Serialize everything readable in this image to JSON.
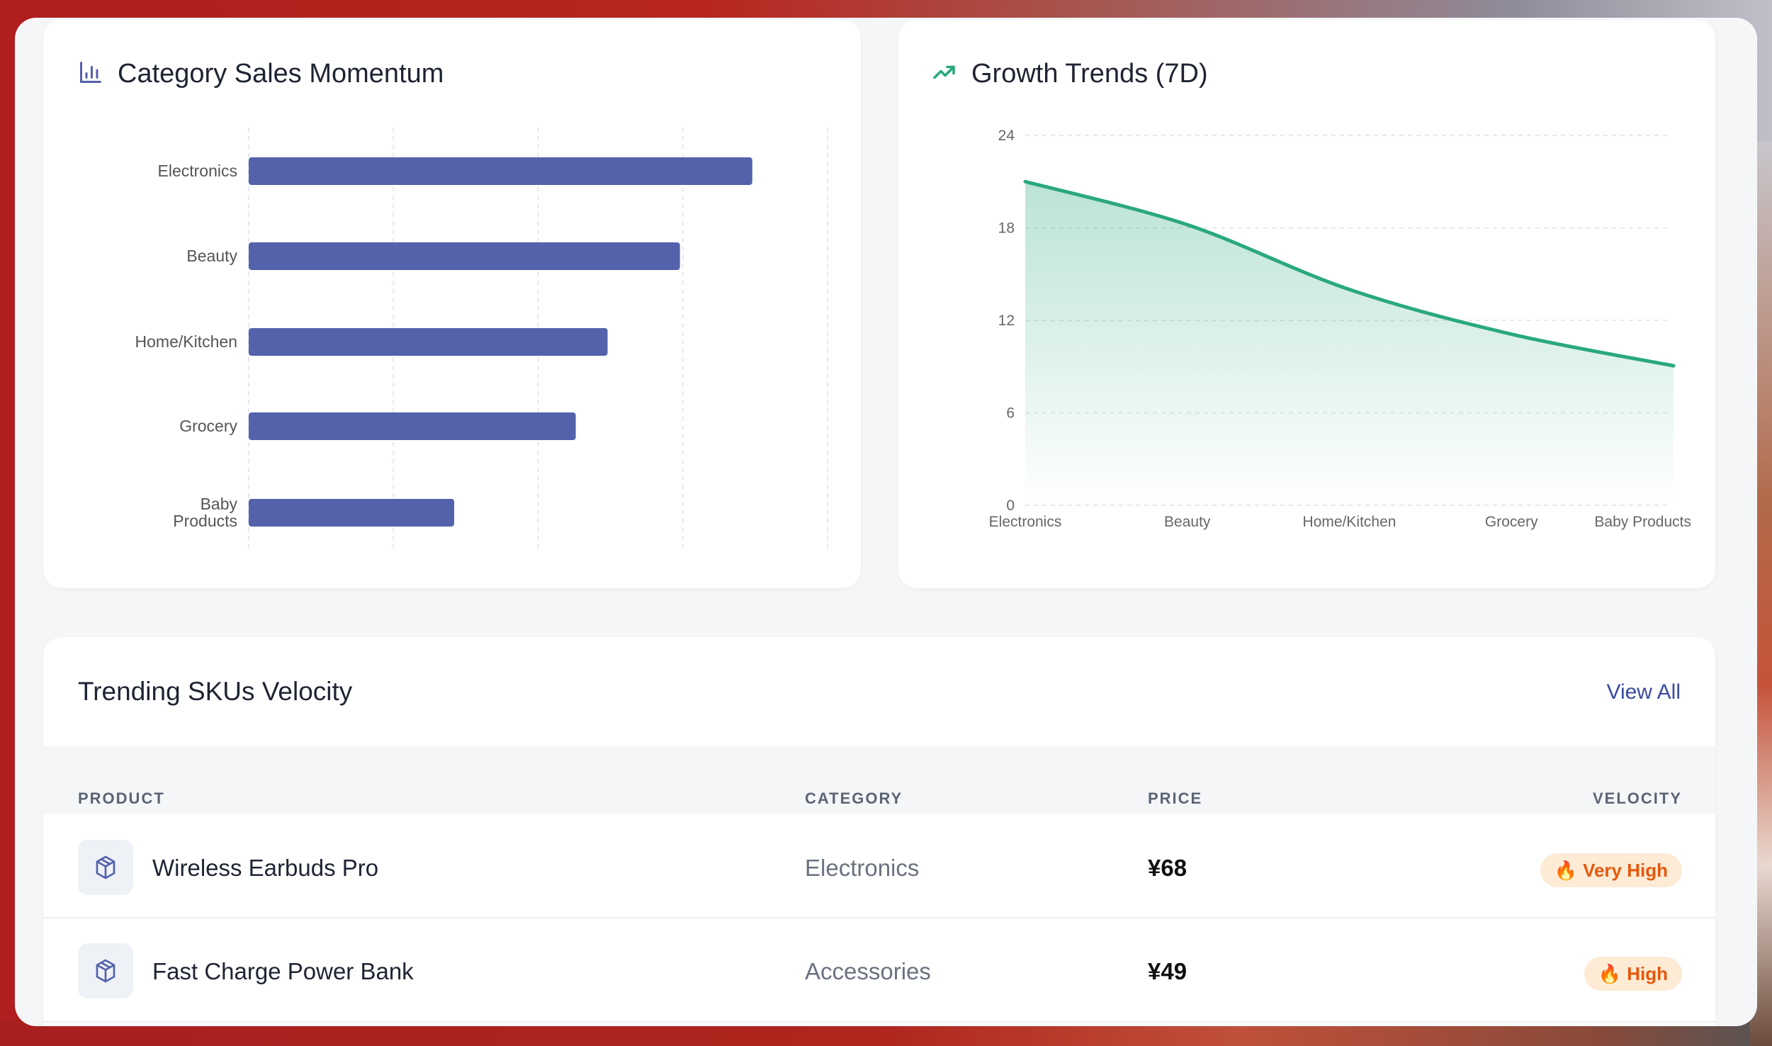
{
  "category_card": {
    "title": "Category Sales Momentum",
    "icon": "bar-chart-icon"
  },
  "growth_card": {
    "title": "Growth Trends (7D)",
    "icon": "trending-up-icon"
  },
  "chart_data": [
    {
      "type": "bar",
      "orientation": "horizontal",
      "title": "Category Sales Momentum",
      "categories": [
        "Electronics",
        "Beauty",
        "Home/Kitchen",
        "Grocery",
        "Baby Products"
      ],
      "values": [
        3.48,
        2.98,
        2.48,
        2.26,
        1.42
      ],
      "xlim": [
        0,
        4
      ],
      "grid": true,
      "tick_labels_shown": false,
      "color": "#5461ab"
    },
    {
      "type": "area",
      "title": "Growth Trends (7D)",
      "categories": [
        "Electronics",
        "Beauty",
        "Home/Kitchen",
        "Grocery",
        "Baby Products"
      ],
      "values": [
        21,
        18.2,
        14,
        11.1,
        9.05
      ],
      "yticks": [
        "0",
        "6",
        "12",
        "18",
        "24"
      ],
      "ylim": [
        0,
        24
      ],
      "grid": true,
      "color": "#2aa87e"
    }
  ],
  "skus": {
    "title": "Trending SKUs Velocity",
    "view_all": "View All",
    "columns": [
      "PRODUCT",
      "CATEGORY",
      "PRICE",
      "VELOCITY"
    ],
    "rows": [
      {
        "product": "Wireless Earbuds Pro",
        "category": "Electronics",
        "price": "¥68",
        "velocity": "Very High",
        "icon": "package-icon",
        "badge_icon": "fire-icon"
      },
      {
        "product": "Fast Charge Power Bank",
        "category": "Accessories",
        "price": "¥49",
        "velocity": "High",
        "icon": "package-icon",
        "badge_icon": "fire-icon"
      }
    ]
  },
  "colors": {
    "accent": "#3b4aa0",
    "bar": "#5461ab",
    "line": "#2aa87e",
    "badge_bg": "#fdebd6",
    "badge_text": "#e5580c"
  }
}
